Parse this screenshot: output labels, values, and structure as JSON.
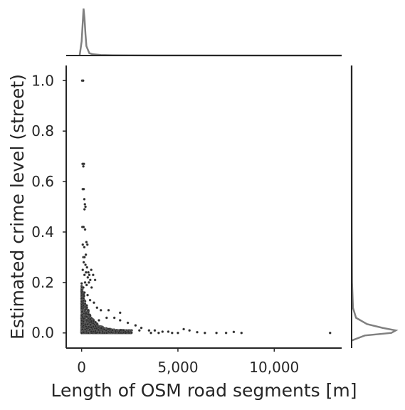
{
  "chart_data": {
    "type": "scatter",
    "subtype": "jointplot",
    "xlabel": "Length of OSM road segments [m]",
    "ylabel": "Estimated crime level (street)",
    "xlim": [
      -800,
      13500
    ],
    "ylim": [
      -0.06,
      1.06
    ],
    "xticks": [
      0,
      5000,
      10000
    ],
    "xtick_labels": [
      "0",
      "5,000",
      "10,000"
    ],
    "yticks": [
      0.0,
      0.2,
      0.4,
      0.6,
      0.8,
      1.0
    ],
    "ytick_labels": [
      "0.0",
      "0.2",
      "0.4",
      "0.6",
      "0.8",
      "1.0"
    ],
    "grid": false,
    "colors": {
      "points": "#2b2b2b",
      "marginal": "#808080",
      "axes": "#262626"
    },
    "points": [
      [
        30,
        1.0
      ],
      [
        80,
        1.0
      ],
      [
        50,
        0.67
      ],
      [
        120,
        0.67
      ],
      [
        90,
        0.66
      ],
      [
        60,
        0.57
      ],
      [
        110,
        0.57
      ],
      [
        140,
        0.53
      ],
      [
        170,
        0.51
      ],
      [
        150,
        0.49
      ],
      [
        200,
        0.5
      ],
      [
        40,
        0.42
      ],
      [
        100,
        0.42
      ],
      [
        180,
        0.41
      ],
      [
        60,
        0.35
      ],
      [
        250,
        0.36
      ],
      [
        140,
        0.34
      ],
      [
        300,
        0.35
      ],
      [
        90,
        0.3
      ],
      [
        150,
        0.3
      ],
      [
        220,
        0.31
      ],
      [
        110,
        0.28
      ],
      [
        200,
        0.27
      ],
      [
        60,
        0.25
      ],
      [
        280,
        0.26
      ],
      [
        350,
        0.24
      ],
      [
        400,
        0.23
      ],
      [
        500,
        0.25
      ],
      [
        600,
        0.23
      ],
      [
        700,
        0.21
      ],
      [
        150,
        0.23
      ],
      [
        230,
        0.24
      ],
      [
        320,
        0.22
      ],
      [
        450,
        0.21
      ],
      [
        180,
        0.2
      ],
      [
        260,
        0.19
      ],
      [
        380,
        0.2
      ],
      [
        520,
        0.18
      ],
      [
        90,
        0.18
      ],
      [
        150,
        0.16
      ],
      [
        310,
        0.15
      ],
      [
        440,
        0.13
      ],
      [
        640,
        0.12
      ],
      [
        800,
        0.1
      ],
      [
        1000,
        0.09
      ],
      [
        1400,
        0.09
      ],
      [
        1700,
        0.06
      ],
      [
        2000,
        0.05
      ],
      [
        2400,
        0.04
      ],
      [
        2800,
        0.03
      ],
      [
        3100,
        0.02
      ],
      [
        3500,
        0.01
      ],
      [
        3800,
        0.01
      ],
      [
        4200,
        0.005
      ],
      [
        4500,
        0.005
      ],
      [
        4700,
        0.0
      ],
      [
        5000,
        0.0
      ],
      [
        5300,
        0.015
      ],
      [
        5600,
        0.01
      ],
      [
        6000,
        0.003
      ],
      [
        6400,
        0.0
      ],
      [
        7000,
        0.0
      ],
      [
        7500,
        0.0
      ],
      [
        7900,
        0.004
      ],
      [
        8300,
        0.0
      ],
      [
        12900,
        0.0
      ],
      [
        2000,
        0.08
      ],
      [
        1300,
        0.06
      ],
      [
        900,
        0.05
      ],
      [
        3000,
        0.01
      ],
      [
        3600,
        0.0
      ],
      [
        4000,
        0.0
      ]
    ],
    "marginal_x": {
      "x": [
        -100,
        0,
        100,
        150,
        200,
        250,
        400,
        600,
        1000,
        1600,
        2500,
        4000,
        13500
      ],
      "density": [
        0,
        0.3,
        1.0,
        0.8,
        0.45,
        0.2,
        0.05,
        0.025,
        0.012,
        0.006,
        0.003,
        0.001,
        0
      ]
    },
    "marginal_y": {
      "y": [
        -0.03,
        -0.01,
        0.0,
        0.01,
        0.02,
        0.035,
        0.06,
        0.1,
        0.2,
        0.4,
        1.06
      ],
      "density": [
        0,
        0.3,
        0.9,
        1.0,
        0.7,
        0.35,
        0.1,
        0.03,
        0.01,
        0.003,
        0
      ]
    }
  }
}
